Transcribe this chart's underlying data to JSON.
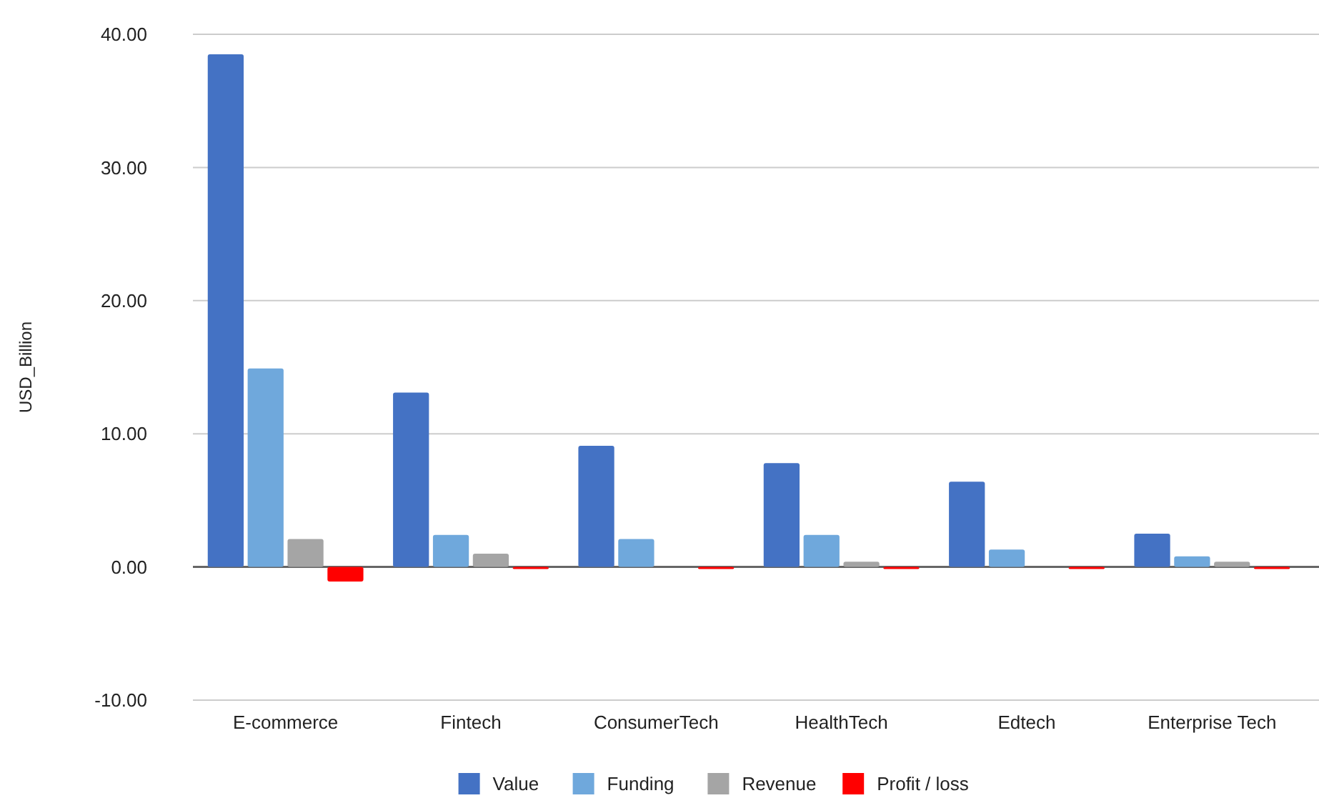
{
  "chart_data": {
    "type": "bar",
    "ylabel": "USD_Billion",
    "categories": [
      "E-commerce",
      "Fintech",
      "ConsumerTech",
      "HealthTech",
      "Edtech",
      "Enterprise Tech"
    ],
    "series": [
      {
        "name": "Value",
        "color": "#4472c4",
        "values": [
          38.5,
          13.1,
          9.1,
          7.8,
          6.4,
          2.5
        ]
      },
      {
        "name": "Funding",
        "color": "#6fa8dc",
        "values": [
          14.9,
          2.4,
          2.1,
          2.4,
          1.3,
          0.8
        ]
      },
      {
        "name": "Revenue",
        "color": "#a5a5a5",
        "values": [
          2.1,
          1.0,
          0,
          0.4,
          0,
          0.4
        ]
      },
      {
        "name": "Profit / loss",
        "color": "#ff0000",
        "values": [
          -1.1,
          -0.1,
          -0.1,
          -0.1,
          -0.1,
          -0.1
        ]
      }
    ],
    "ylim": [
      -10,
      40
    ],
    "yticks": [
      {
        "value": -10,
        "label": "-10.00"
      },
      {
        "value": 0,
        "label": "0.00"
      },
      {
        "value": 10,
        "label": "10.00"
      },
      {
        "value": 20,
        "label": "20.00"
      },
      {
        "value": 30,
        "label": "30.00"
      },
      {
        "value": 40,
        "label": "40.00"
      }
    ],
    "grid": "y",
    "legend": "bottom"
  }
}
